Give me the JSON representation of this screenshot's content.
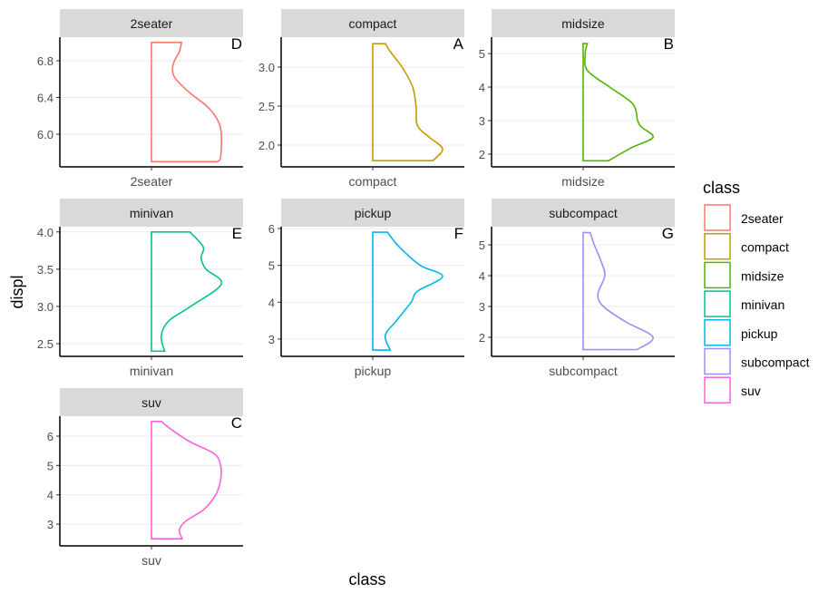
{
  "chart_data": {
    "type": "violin",
    "xlabel": "class",
    "ylabel": "displ",
    "legend": {
      "title": "class",
      "placement": "right"
    },
    "panels": [
      {
        "name": "2seater",
        "tag": "D",
        "color": "#F8766D",
        "ylim": [
          5.644,
          7.057
        ],
        "ticks": [
          "6.0",
          "6.4",
          "6.8"
        ],
        "profile": [
          [
            5.7,
            0.94
          ],
          [
            5.75,
            0.99
          ],
          [
            6.0,
            1.0
          ],
          [
            6.15,
            0.95
          ],
          [
            6.3,
            0.8
          ],
          [
            6.45,
            0.55
          ],
          [
            6.6,
            0.35
          ],
          [
            6.7,
            0.3
          ],
          [
            6.8,
            0.33
          ],
          [
            6.9,
            0.4
          ],
          [
            7.0,
            0.43
          ]
        ]
      },
      {
        "name": "compact",
        "tag": "A",
        "color": "#C49A00",
        "ylim": [
          1.721,
          3.384
        ],
        "ticks": [
          "2.0",
          "2.5",
          "3.0"
        ],
        "profile": [
          [
            1.8,
            0.86
          ],
          [
            1.95,
            1.0
          ],
          [
            2.1,
            0.81
          ],
          [
            2.25,
            0.64
          ],
          [
            2.5,
            0.62
          ],
          [
            2.75,
            0.57
          ],
          [
            3.0,
            0.42
          ],
          [
            3.2,
            0.25
          ],
          [
            3.3,
            0.18
          ]
        ]
      },
      {
        "name": "midsize",
        "tag": "B",
        "color": "#53B400",
        "ylim": [
          1.62,
          5.49
        ],
        "ticks": [
          "2",
          "3",
          "4",
          "5"
        ],
        "profile": [
          [
            1.8,
            0.36
          ],
          [
            2.2,
            0.7
          ],
          [
            2.5,
            1.0
          ],
          [
            2.8,
            0.84
          ],
          [
            3.0,
            0.78
          ],
          [
            3.5,
            0.71
          ],
          [
            4.0,
            0.38
          ],
          [
            4.5,
            0.06
          ],
          [
            5.0,
            0.03
          ],
          [
            5.3,
            0.06
          ]
        ]
      },
      {
        "name": "minivan",
        "tag": "E",
        "color": "#00C094",
        "ylim": [
          2.33,
          4.07
        ],
        "ticks": [
          "2.5",
          "3.0",
          "3.5",
          "4.0"
        ],
        "profile": [
          [
            2.4,
            0.19
          ],
          [
            2.6,
            0.14
          ],
          [
            2.8,
            0.24
          ],
          [
            3.0,
            0.56
          ],
          [
            3.3,
            1.0
          ],
          [
            3.5,
            0.78
          ],
          [
            3.65,
            0.71
          ],
          [
            3.8,
            0.74
          ],
          [
            4.0,
            0.55
          ]
        ]
      },
      {
        "name": "pickup",
        "tag": "F",
        "color": "#00B6EB",
        "ylim": [
          2.53,
          6.05
        ],
        "ticks": [
          "3",
          "4",
          "5",
          "6"
        ],
        "profile": [
          [
            2.7,
            0.25
          ],
          [
            3.1,
            0.18
          ],
          [
            3.5,
            0.34
          ],
          [
            4.0,
            0.55
          ],
          [
            4.3,
            0.64
          ],
          [
            4.7,
            1.0
          ],
          [
            5.0,
            0.68
          ],
          [
            5.5,
            0.38
          ],
          [
            5.9,
            0.21
          ]
        ]
      },
      {
        "name": "subcompact",
        "tag": "G",
        "color": "#A58AFF",
        "ylim": [
          1.38,
          5.59
        ],
        "ticks": [
          "2",
          "3",
          "4",
          "5"
        ],
        "profile": [
          [
            1.6,
            0.77
          ],
          [
            2.0,
            1.0
          ],
          [
            2.5,
            0.61
          ],
          [
            3.0,
            0.29
          ],
          [
            3.4,
            0.21
          ],
          [
            4.0,
            0.31
          ],
          [
            4.5,
            0.25
          ],
          [
            5.0,
            0.16
          ],
          [
            5.4,
            0.1
          ]
        ]
      },
      {
        "name": "suv",
        "tag": "C",
        "color": "#FB61D7",
        "ylim": [
          2.26,
          6.68
        ],
        "ticks": [
          "3",
          "4",
          "5",
          "6"
        ],
        "profile": [
          [
            2.5,
            0.44
          ],
          [
            2.8,
            0.4
          ],
          [
            3.1,
            0.49
          ],
          [
            3.5,
            0.75
          ],
          [
            4.0,
            0.92
          ],
          [
            4.5,
            0.99
          ],
          [
            5.0,
            0.99
          ],
          [
            5.4,
            0.9
          ],
          [
            5.8,
            0.56
          ],
          [
            6.2,
            0.3
          ],
          [
            6.5,
            0.14
          ]
        ]
      }
    ]
  }
}
